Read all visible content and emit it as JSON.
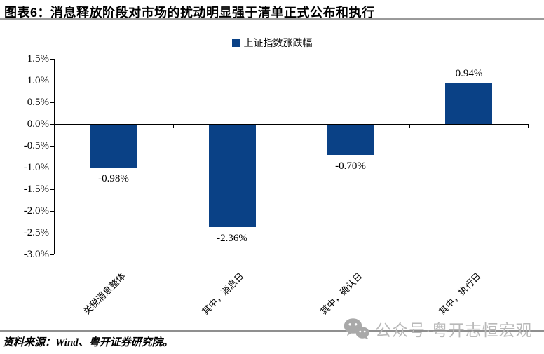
{
  "title": "图表6：消息释放阶段对市场的扰动明显强于清单正式公布和执行",
  "legend": {
    "label": "上证指数涨跌幅"
  },
  "source": "资料来源：Wind、粤开证券研究院。",
  "watermark": {
    "icon": "wechat-icon",
    "text": "公众号·粤开志恒宏观"
  },
  "colors": {
    "bar": "#0a4186",
    "axis": "#000000",
    "rule_gray": "#9a9a9a",
    "watermark_gray": "#b9b9b9"
  },
  "chart_data": {
    "type": "bar",
    "title": "上证指数涨跌幅",
    "categories": [
      "关税消息整体",
      "其中，消息日",
      "其中，确认日",
      "其中，执行日"
    ],
    "values": [
      -0.98,
      -2.36,
      -0.7,
      0.94
    ],
    "data_labels": [
      "-0.98%",
      "-2.36%",
      "-0.70%",
      "0.94%"
    ],
    "yticks": [
      "1.5%",
      "1.0%",
      "0.5%",
      "0.0%",
      "-0.5%",
      "-1.0%",
      "-1.5%",
      "-2.0%",
      "-2.5%",
      "-3.0%"
    ],
    "ylim": [
      -3.0,
      1.5
    ],
    "ytick_step": 0.5,
    "xlabel": "",
    "ylabel": "",
    "grid": false,
    "legend_position": "top-center"
  }
}
